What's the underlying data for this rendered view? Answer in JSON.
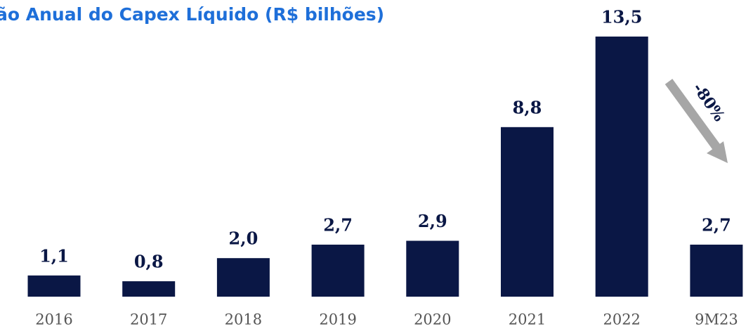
{
  "chart_data": {
    "type": "bar",
    "title": "ão Anual do Capex Líquido (R$ bilhões)",
    "categories": [
      "2016",
      "2017",
      "2018",
      "2019",
      "2020",
      "2021",
      "2022",
      "9M23"
    ],
    "values": [
      1.1,
      0.8,
      2.0,
      2.7,
      2.9,
      8.8,
      13.5,
      2.7
    ],
    "value_labels": [
      "1,1",
      "0,8",
      "2,0",
      "2,7",
      "2,9",
      "8,8",
      "13,5",
      "2,7"
    ],
    "color": "#0a1745",
    "annotation": "-80%"
  }
}
